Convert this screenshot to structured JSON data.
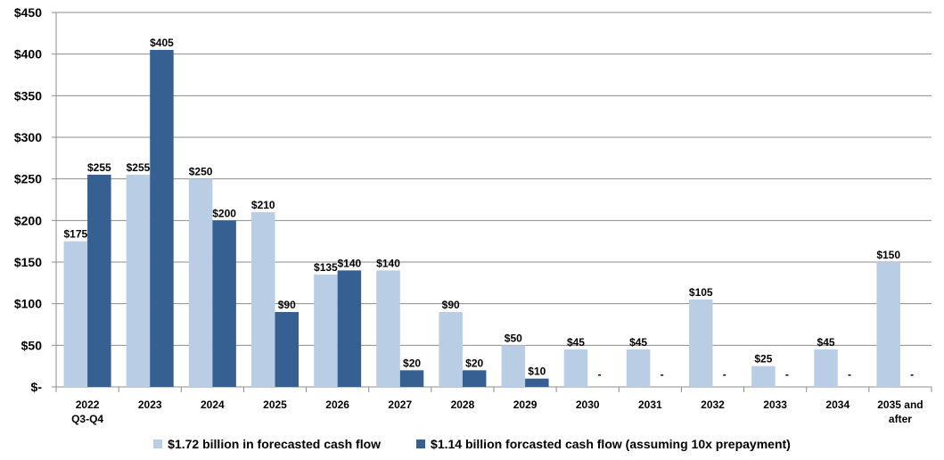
{
  "chart_data": {
    "type": "bar",
    "title": "",
    "xlabel": "",
    "ylabel": "",
    "ylim": [
      0,
      450
    ],
    "ytick_values": [
      0,
      50,
      100,
      150,
      200,
      250,
      300,
      350,
      400,
      450
    ],
    "ytick_labels": [
      "$-",
      "$50",
      "$100",
      "$150",
      "$200",
      "$250",
      "$300",
      "$350",
      "$400",
      "$450"
    ],
    "grid": true,
    "legend_position": "bottom",
    "categories": [
      [
        "2022",
        "Q3-Q4"
      ],
      [
        "2023"
      ],
      [
        "2024"
      ],
      [
        "2025"
      ],
      [
        "2026"
      ],
      [
        "2027"
      ],
      [
        "2028"
      ],
      [
        "2029"
      ],
      [
        "2030"
      ],
      [
        "2031"
      ],
      [
        "2032"
      ],
      [
        "2033"
      ],
      [
        "2034"
      ],
      [
        "2035 and",
        "after"
      ]
    ],
    "series": [
      {
        "name": "$1.72 billion in forecasted cash flow",
        "color": "#b9cde4",
        "values": [
          175,
          255,
          250,
          210,
          135,
          140,
          90,
          50,
          45,
          45,
          105,
          25,
          45,
          150
        ],
        "labels": [
          "$175",
          "$255",
          "$250",
          "$210",
          "$135",
          "$140",
          "$90",
          "$50",
          "$45",
          "$45",
          "$105",
          "$25",
          "$45",
          "$150"
        ]
      },
      {
        "name": "$1.14 billion forcasted cash flow (assuming 10x prepayment)",
        "color": "#376092",
        "values": [
          255,
          405,
          200,
          90,
          140,
          20,
          20,
          10,
          0,
          0,
          0,
          0,
          0,
          0
        ],
        "labels": [
          "$255",
          "$405",
          "$200",
          "$90",
          "$140",
          "$20",
          "$20",
          "$10",
          "-",
          "-",
          "-",
          "-",
          "-",
          "-"
        ]
      }
    ]
  }
}
